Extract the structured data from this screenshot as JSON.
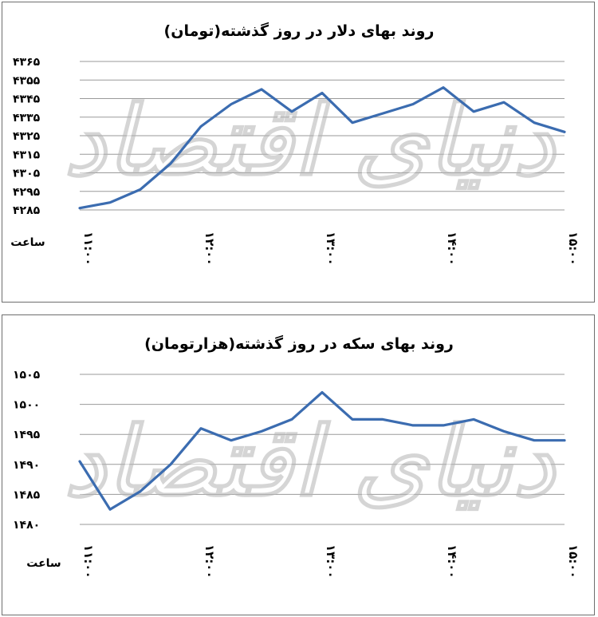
{
  "chart_data": [
    {
      "type": "line",
      "title": "روند بهای دلار در روز گذشته(تومان)",
      "xlabel": "ساعت",
      "x_tick_labels": [
        "۱۱:۰۰",
        "۱۲:۰۰",
        "۱۳:۰۰",
        "۱۴:۰۰",
        "۱۵:۰۰"
      ],
      "y_tick_labels": [
        "۴۲۸۵",
        "۴۲۹۵",
        "۴۳۰۵",
        "۴۳۱۵",
        "۴۳۲۵",
        "۴۳۳۵",
        "۴۳۴۵",
        "۴۳۵۵",
        "۴۳۶۵"
      ],
      "ylim": [
        4285,
        4365
      ],
      "x_hours": [
        11,
        11.25,
        11.5,
        11.75,
        12,
        12.25,
        12.5,
        12.75,
        13,
        13.25,
        13.5,
        13.75,
        14,
        14.25,
        14.5,
        14.75,
        15
      ],
      "series": [
        {
          "values": [
            4286,
            4289,
            4296,
            4310,
            4330,
            4342,
            4350,
            4338,
            4348,
            4332,
            4337,
            4342,
            4351,
            4338,
            4343,
            4332,
            4327
          ]
        }
      ],
      "line_color": "#3b6cb0",
      "grid": true
    },
    {
      "type": "line",
      "title": "روند بهای سکه در روز گذشته(هزارتومان)",
      "xlabel": "ساعت",
      "x_tick_labels": [
        "۱۱:۰۰",
        "۱۲:۰۰",
        "۱۳:۰۰",
        "۱۴:۰۰",
        "۱۵:۰۰"
      ],
      "y_tick_labels": [
        "۱۴۸۰",
        "۱۴۸۵",
        "۱۴۹۰",
        "۱۴۹۵",
        "۱۵۰۰",
        "۱۵۰۵"
      ],
      "ylim": [
        1480,
        1505
      ],
      "x_hours": [
        11,
        11.25,
        11.5,
        11.75,
        12,
        12.25,
        12.5,
        12.75,
        13,
        13.25,
        13.5,
        13.75,
        14,
        14.25,
        14.5,
        14.75,
        15
      ],
      "series": [
        {
          "values": [
            1490.5,
            1482.5,
            1485.5,
            1490,
            1496,
            1494,
            1495.5,
            1497.5,
            1502,
            1497.5,
            1497.5,
            1496.5,
            1496.5,
            1497.5,
            1495.5,
            1494,
            1494
          ]
        }
      ],
      "line_color": "#3b6cb0",
      "grid": true
    }
  ],
  "watermark": {
    "text": "دنیای اقتصاد"
  }
}
